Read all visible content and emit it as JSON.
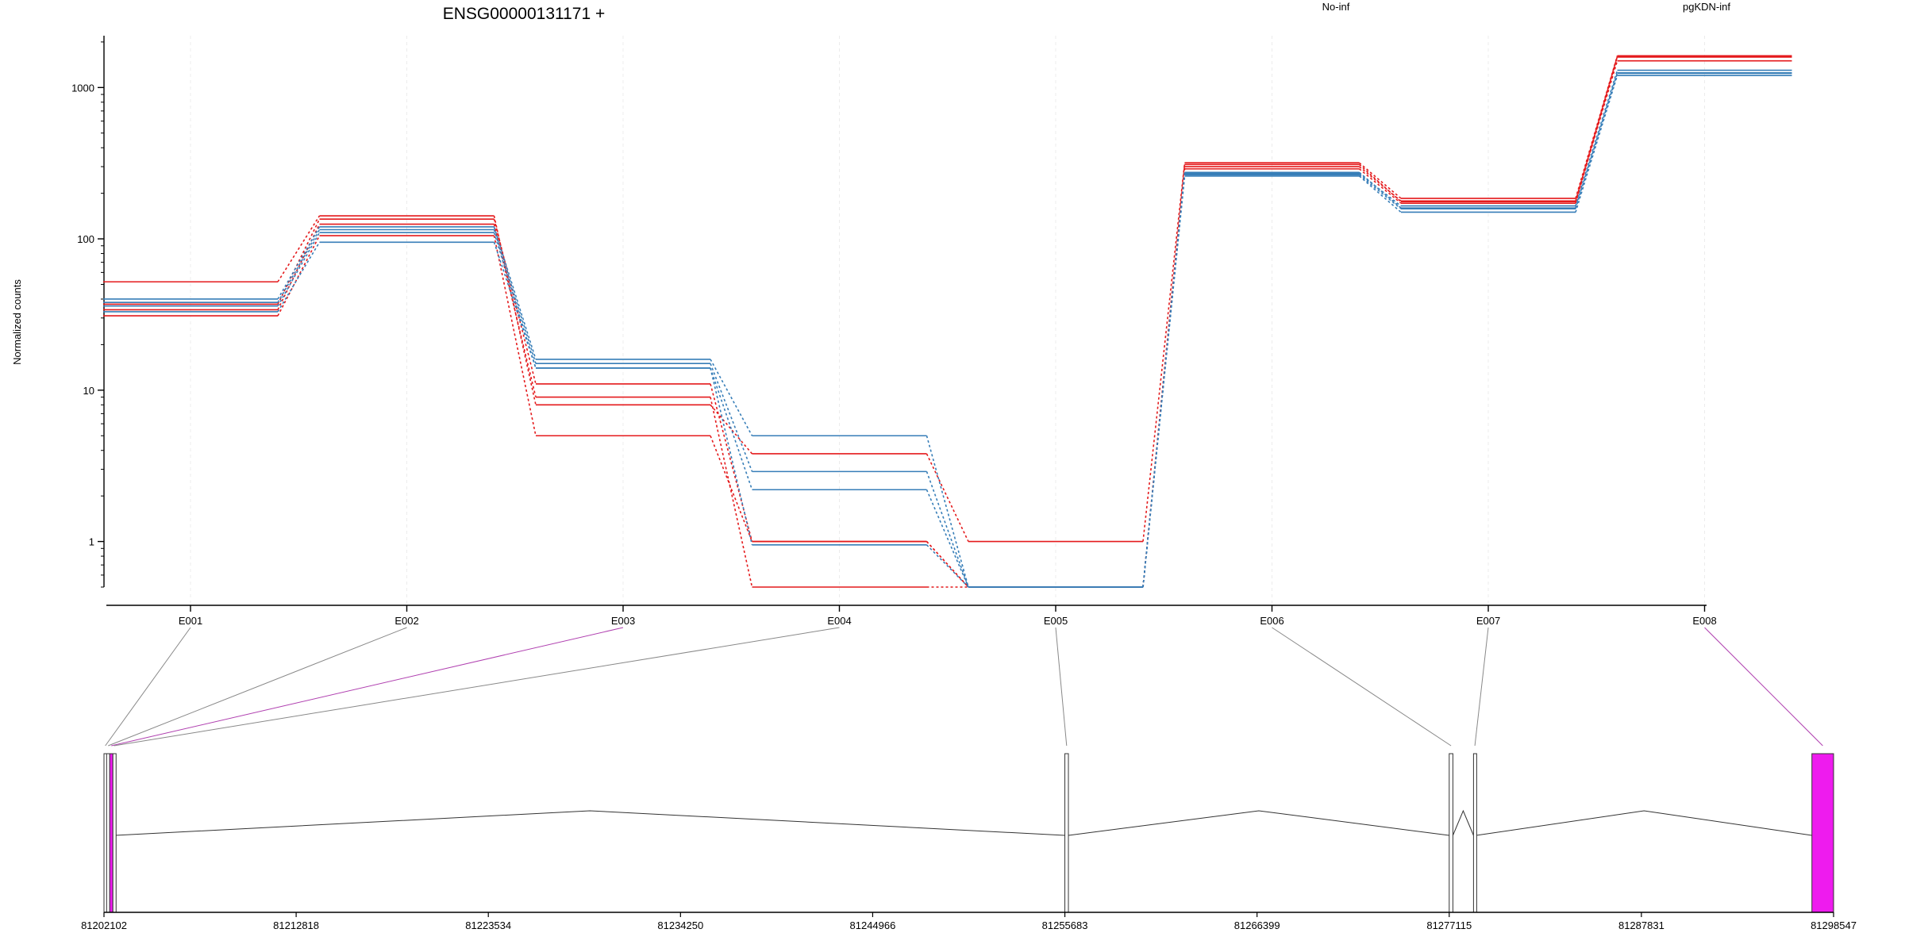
{
  "chart_data": {
    "type": "line",
    "title": "ENSG00000131171 +",
    "ylabel": "Normalized counts",
    "yscale": "log",
    "ylim": [
      0.5,
      2200
    ],
    "yticks": [
      1,
      10,
      100,
      1000
    ],
    "ytick_labels": [
      "1",
      "10",
      "100",
      "1000"
    ],
    "categories": [
      "E001",
      "E002",
      "E003",
      "E004",
      "E005",
      "E006",
      "E007",
      "E008"
    ],
    "legend": [
      {
        "label": "No-inf",
        "color": "#e41a1c"
      },
      {
        "label": "pgKDN-inf",
        "color": "#377eb8"
      }
    ],
    "series": [
      {
        "group": "No-inf",
        "color": "#e41a1c",
        "values": [
          52,
          142,
          8,
          3.8,
          1,
          318,
          185,
          1620
        ]
      },
      {
        "group": "No-inf",
        "color": "#e41a1c",
        "values": [
          37,
          135,
          11,
          1.0,
          0.5,
          300,
          178,
          1600
        ]
      },
      {
        "group": "No-inf",
        "color": "#e41a1c",
        "values": [
          34,
          125,
          9,
          0.5,
          0.5,
          290,
          172,
          1590
        ]
      },
      {
        "group": "No-inf",
        "color": "#e41a1c",
        "values": [
          31,
          105,
          5,
          1.0,
          0.5,
          310,
          176,
          1500
        ]
      },
      {
        "group": "pgKDN-inf",
        "color": "#377eb8",
        "values": [
          40,
          120,
          16,
          5.0,
          0.5,
          270,
          165,
          1300
        ]
      },
      {
        "group": "pgKDN-inf",
        "color": "#377eb8",
        "values": [
          38,
          115,
          15,
          2.9,
          0.5,
          275,
          160,
          1250
        ]
      },
      {
        "group": "pgKDN-inf",
        "color": "#377eb8",
        "values": [
          36,
          110,
          14,
          2.2,
          0.5,
          265,
          158,
          1240
        ]
      },
      {
        "group": "pgKDN-inf",
        "color": "#377eb8",
        "values": [
          33,
          95,
          14,
          0.95,
          0.5,
          260,
          150,
          1200
        ]
      }
    ],
    "gene_model": {
      "start": 81202102,
      "end": 81298547,
      "genomic_ticks": [
        81202102,
        81212818,
        81223534,
        81234250,
        81244966,
        81255683,
        81266399,
        81277115,
        81287831,
        81298547
      ],
      "genomic_tick_labels": [
        "81202102",
        "81212818",
        "81223534",
        "81234250",
        "81244966",
        "81255683",
        "81266399",
        "81277115",
        "81287831",
        "81298547"
      ],
      "exons": [
        {
          "id": "E001",
          "start": 81202102,
          "end": 81202250,
          "highlighted": false
        },
        {
          "id": "E002",
          "start": 81202250,
          "end": 81202420,
          "highlighted": false
        },
        {
          "id": "E003",
          "start": 81202420,
          "end": 81202600,
          "highlighted": true
        },
        {
          "id": "E004",
          "start": 81202600,
          "end": 81202720,
          "highlighted": false
        },
        {
          "id": "E005",
          "start": 81255683,
          "end": 81255880,
          "highlighted": false
        },
        {
          "id": "E006",
          "start": 81277115,
          "end": 81277320,
          "highlighted": false
        },
        {
          "id": "E007",
          "start": 81278470,
          "end": 81278620,
          "highlighted": false
        },
        {
          "id": "E008",
          "start": 81297340,
          "end": 81298547,
          "highlighted": true
        }
      ],
      "introns": [
        {
          "from": 81202250,
          "to": 81202420
        },
        {
          "from": 81202720,
          "to": 81255683
        },
        {
          "from": 81255880,
          "to": 81277115
        },
        {
          "from": 81277320,
          "to": 81278470
        },
        {
          "from": 81278620,
          "to": 81297340
        }
      ],
      "highlight_color": "#ee1bee",
      "exon_line_color": "#808080"
    }
  }
}
